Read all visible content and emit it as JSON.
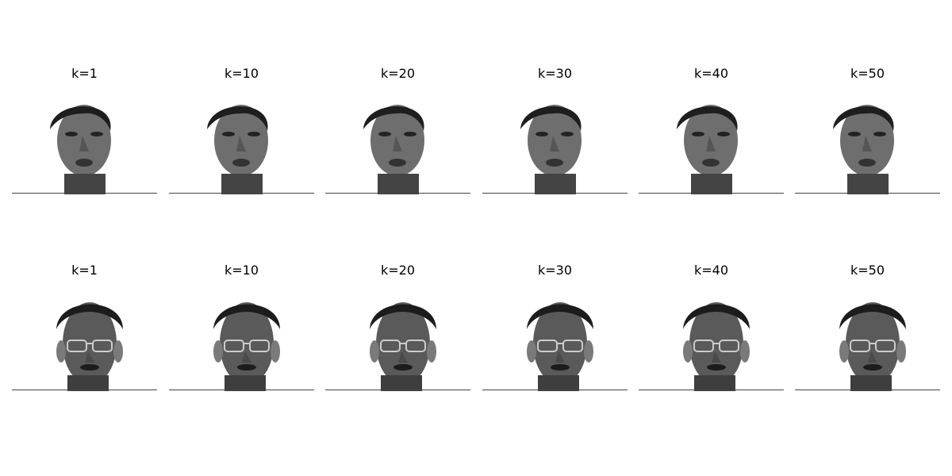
{
  "rows": [
    {
      "subject": "asian-man",
      "panels": [
        {
          "label": "k=1"
        },
        {
          "label": "k=10"
        },
        {
          "label": "k=20"
        },
        {
          "label": "k=30"
        },
        {
          "label": "k=40"
        },
        {
          "label": "k=50"
        }
      ]
    },
    {
      "subject": "man-with-glasses",
      "panels": [
        {
          "label": "k=1"
        },
        {
          "label": "k=10"
        },
        {
          "label": "k=20"
        },
        {
          "label": "k=30"
        },
        {
          "label": "k=40"
        },
        {
          "label": "k=50"
        }
      ]
    }
  ],
  "colors": {
    "face": "#6b6b6b",
    "hair": "#1e1e1e",
    "shadow": "#3a3a3a"
  }
}
